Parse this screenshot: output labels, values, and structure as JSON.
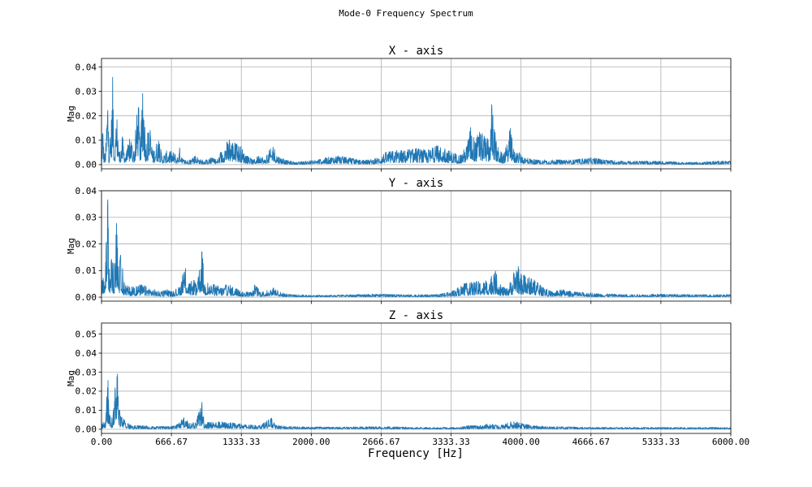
{
  "title": "Mode-0 Frequency Spectrum",
  "xlabel": "Frequency [Hz]",
  "colors": {
    "series": "#1f77b4",
    "grid": "#b0b0b0",
    "axes": "#000000"
  },
  "chart_data": [
    {
      "type": "line",
      "title": "X - axis",
      "ylabel": "Mag",
      "xlim": [
        0,
        6000
      ],
      "ylim": [
        -0.0017,
        0.0435
      ],
      "yticks": [
        0.0,
        0.01,
        0.02,
        0.03,
        0.04
      ],
      "ytick_labels": [
        "0.00",
        "0.01",
        "0.02",
        "0.03",
        "0.04"
      ],
      "xticks": [
        0,
        666.67,
        1333.33,
        2000,
        2666.67,
        3333.33,
        4000,
        4666.67,
        5333.33,
        6000
      ],
      "grid": true,
      "envelope": [
        [
          0,
          0
        ],
        [
          10,
          0.021
        ],
        [
          25,
          0.004
        ],
        [
          40,
          0.007
        ],
        [
          60,
          0.036
        ],
        [
          70,
          0.005
        ],
        [
          90,
          0.015
        ],
        [
          110,
          0.041
        ],
        [
          120,
          0.006
        ],
        [
          150,
          0.022
        ],
        [
          170,
          0.005
        ],
        [
          200,
          0.012
        ],
        [
          230,
          0.004
        ],
        [
          280,
          0.013
        ],
        [
          310,
          0.005
        ],
        [
          350,
          0.029
        ],
        [
          370,
          0.008
        ],
        [
          400,
          0.037
        ],
        [
          420,
          0.01
        ],
        [
          460,
          0.016
        ],
        [
          490,
          0.006
        ],
        [
          540,
          0.011
        ],
        [
          580,
          0.004
        ],
        [
          630,
          0.006
        ],
        [
          700,
          0.005
        ],
        [
          720,
          0.003
        ],
        [
          750,
          0.008
        ],
        [
          780,
          0.002
        ],
        [
          850,
          0.002
        ],
        [
          900,
          0.004
        ],
        [
          950,
          0.002
        ],
        [
          1000,
          0.002
        ],
        [
          1050,
          0.003
        ],
        [
          1100,
          0.002
        ],
        [
          1180,
          0.009
        ],
        [
          1230,
          0.011
        ],
        [
          1280,
          0.009
        ],
        [
          1330,
          0.008
        ],
        [
          1370,
          0.004
        ],
        [
          1450,
          0.002
        ],
        [
          1520,
          0.005
        ],
        [
          1550,
          0.002
        ],
        [
          1600,
          0.006
        ],
        [
          1640,
          0.008
        ],
        [
          1680,
          0.004
        ],
        [
          1750,
          0.002
        ],
        [
          1850,
          0.001
        ],
        [
          1950,
          0.0015
        ],
        [
          2050,
          0.002
        ],
        [
          2150,
          0.003
        ],
        [
          2250,
          0.004
        ],
        [
          2350,
          0.003
        ],
        [
          2450,
          0.002
        ],
        [
          2550,
          0.002
        ],
        [
          2640,
          0.003
        ],
        [
          2700,
          0.005
        ],
        [
          2800,
          0.006
        ],
        [
          2900,
          0.006
        ],
        [
          3000,
          0.007
        ],
        [
          3100,
          0.006
        ],
        [
          3200,
          0.008
        ],
        [
          3280,
          0.007
        ],
        [
          3350,
          0.005
        ],
        [
          3420,
          0.004
        ],
        [
          3480,
          0.008
        ],
        [
          3520,
          0.016
        ],
        [
          3560,
          0.01
        ],
        [
          3600,
          0.014
        ],
        [
          3650,
          0.012
        ],
        [
          3700,
          0.01
        ],
        [
          3720,
          0.026
        ],
        [
          3740,
          0.018
        ],
        [
          3770,
          0.008
        ],
        [
          3800,
          0.006
        ],
        [
          3830,
          0.004
        ],
        [
          3870,
          0.009
        ],
        [
          3900,
          0.016
        ],
        [
          3930,
          0.006
        ],
        [
          3980,
          0.005
        ],
        [
          4050,
          0.003
        ],
        [
          4150,
          0.002
        ],
        [
          4300,
          0.002
        ],
        [
          4500,
          0.002
        ],
        [
          4660,
          0.003
        ],
        [
          4800,
          0.002
        ],
        [
          5000,
          0.0015
        ],
        [
          5300,
          0.0015
        ],
        [
          5550,
          0.001
        ],
        [
          5700,
          0.001
        ],
        [
          5850,
          0.0015
        ],
        [
          6000,
          0.0015
        ]
      ]
    },
    {
      "type": "line",
      "title": "Y - axis",
      "ylabel": "Mag",
      "xlim": [
        0,
        6000
      ],
      "ylim": [
        -0.0015,
        0.04
      ],
      "yticks": [
        0.0,
        0.01,
        0.02,
        0.03,
        0.04
      ],
      "ytick_labels": [
        "0.00",
        "0.01",
        "0.02",
        "0.03",
        "0.04"
      ],
      "xticks": [
        0,
        666.67,
        1333.33,
        2000,
        2666.67,
        3333.33,
        4000,
        4666.67,
        5333.33,
        6000
      ],
      "grid": true,
      "envelope": [
        [
          0,
          0.002
        ],
        [
          15,
          0.013
        ],
        [
          30,
          0.005
        ],
        [
          60,
          0.038
        ],
        [
          75,
          0.009
        ],
        [
          100,
          0.017
        ],
        [
          120,
          0.01
        ],
        [
          150,
          0.034
        ],
        [
          165,
          0.012
        ],
        [
          190,
          0.018
        ],
        [
          210,
          0.006
        ],
        [
          260,
          0.004
        ],
        [
          320,
          0.004
        ],
        [
          380,
          0.005
        ],
        [
          430,
          0.004
        ],
        [
          500,
          0.003
        ],
        [
          560,
          0.002
        ],
        [
          620,
          0.003
        ],
        [
          680,
          0.002
        ],
        [
          740,
          0.004
        ],
        [
          800,
          0.012
        ],
        [
          830,
          0.005
        ],
        [
          880,
          0.007
        ],
        [
          910,
          0.004
        ],
        [
          960,
          0.019
        ],
        [
          980,
          0.006
        ],
        [
          1050,
          0.005
        ],
        [
          1150,
          0.004
        ],
        [
          1200,
          0.005
        ],
        [
          1260,
          0.004
        ],
        [
          1300,
          0.003
        ],
        [
          1340,
          0.002
        ],
        [
          1440,
          0.002
        ],
        [
          1460,
          0.005
        ],
        [
          1520,
          0.002
        ],
        [
          1620,
          0.003
        ],
        [
          1650,
          0.004
        ],
        [
          1700,
          0.002
        ],
        [
          1800,
          0.001
        ],
        [
          2000,
          0.0008
        ],
        [
          2200,
          0.0008
        ],
        [
          2400,
          0.001
        ],
        [
          2600,
          0.0012
        ],
        [
          2800,
          0.001
        ],
        [
          3000,
          0.001
        ],
        [
          3200,
          0.001
        ],
        [
          3330,
          0.002
        ],
        [
          3450,
          0.005
        ],
        [
          3550,
          0.006
        ],
        [
          3650,
          0.006
        ],
        [
          3720,
          0.008
        ],
        [
          3760,
          0.01
        ],
        [
          3800,
          0.005
        ],
        [
          3860,
          0.003
        ],
        [
          3920,
          0.008
        ],
        [
          3960,
          0.014
        ],
        [
          3990,
          0.009
        ],
        [
          4050,
          0.008
        ],
        [
          4120,
          0.007
        ],
        [
          4200,
          0.004
        ],
        [
          4300,
          0.002
        ],
        [
          4400,
          0.003
        ],
        [
          4500,
          0.002
        ],
        [
          4700,
          0.0015
        ],
        [
          5000,
          0.001
        ],
        [
          5300,
          0.0012
        ],
        [
          5600,
          0.001
        ],
        [
          6000,
          0.001
        ]
      ]
    },
    {
      "type": "line",
      "title": "Z - axis",
      "ylabel": "Mag",
      "xlim": [
        0,
        6000
      ],
      "ylim": [
        -0.0022,
        0.0558
      ],
      "yticks": [
        0.0,
        0.01,
        0.02,
        0.03,
        0.04,
        0.05
      ],
      "ytick_labels": [
        "0.00",
        "0.01",
        "0.02",
        "0.03",
        "0.04",
        "0.05"
      ],
      "xticks": [
        0,
        666.67,
        1333.33,
        2000,
        2666.67,
        3333.33,
        4000,
        4666.67,
        5333.33,
        6000
      ],
      "grid": true,
      "envelope": [
        [
          0,
          0.001
        ],
        [
          20,
          0.006
        ],
        [
          40,
          0.004
        ],
        [
          60,
          0.03
        ],
        [
          75,
          0.008
        ],
        [
          100,
          0.006
        ],
        [
          120,
          0.012
        ],
        [
          150,
          0.053
        ],
        [
          165,
          0.012
        ],
        [
          190,
          0.007
        ],
        [
          230,
          0.004
        ],
        [
          300,
          0.002
        ],
        [
          400,
          0.002
        ],
        [
          500,
          0.0015
        ],
        [
          650,
          0.0015
        ],
        [
          700,
          0.002
        ],
        [
          800,
          0.007
        ],
        [
          830,
          0.003
        ],
        [
          900,
          0.004
        ],
        [
          960,
          0.016
        ],
        [
          980,
          0.004
        ],
        [
          1100,
          0.004
        ],
        [
          1150,
          0.004
        ],
        [
          1300,
          0.003
        ],
        [
          1500,
          0.002
        ],
        [
          1620,
          0.006
        ],
        [
          1660,
          0.002
        ],
        [
          1800,
          0.0015
        ],
        [
          2000,
          0.0012
        ],
        [
          2300,
          0.0012
        ],
        [
          2700,
          0.0015
        ],
        [
          3000,
          0.001
        ],
        [
          3400,
          0.001
        ],
        [
          3500,
          0.002
        ],
        [
          3600,
          0.002
        ],
        [
          3700,
          0.003
        ],
        [
          3800,
          0.002
        ],
        [
          3900,
          0.004
        ],
        [
          3950,
          0.004
        ],
        [
          4100,
          0.002
        ],
        [
          4300,
          0.0015
        ],
        [
          4700,
          0.001
        ],
        [
          5200,
          0.001
        ],
        [
          5600,
          0.001
        ],
        [
          6000,
          0.001
        ]
      ]
    }
  ]
}
